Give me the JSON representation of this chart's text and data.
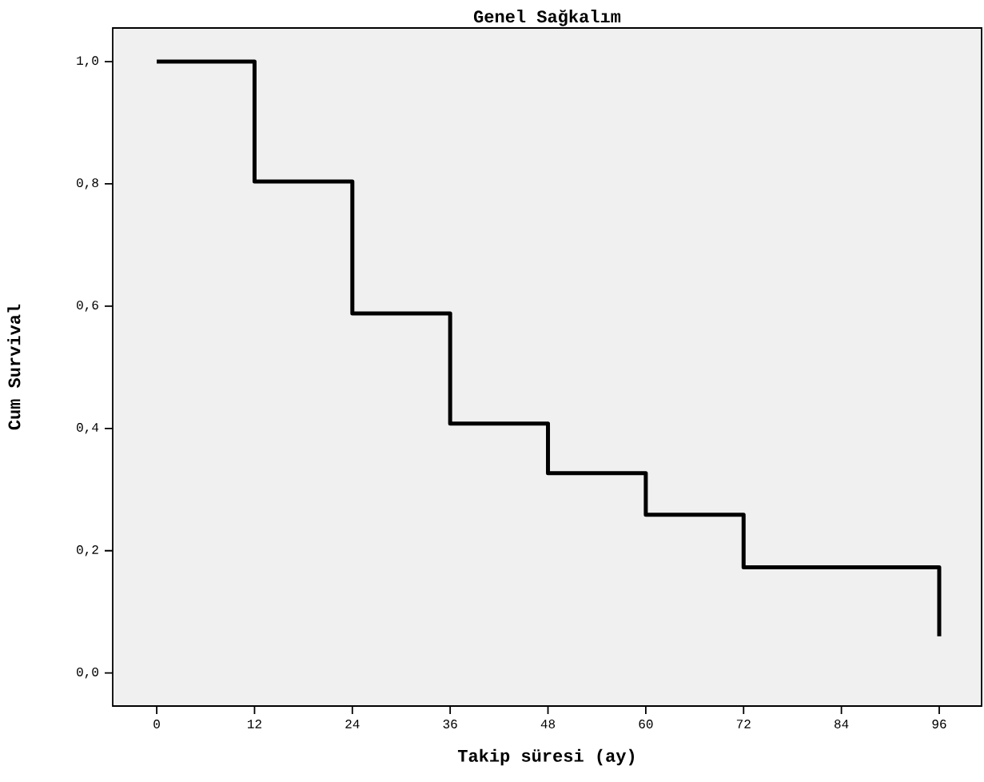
{
  "chart_data": {
    "type": "step",
    "title": "Genel Sağkalım",
    "xlabel": "Takip süresi (ay)",
    "ylabel": "Cum Survival",
    "x": [
      0,
      12,
      24,
      36,
      48,
      60,
      72,
      96
    ],
    "series": [
      {
        "color": "#000000",
        "values": [
          1.0,
          0.804,
          0.588,
          0.408,
          0.327,
          0.259,
          0.173,
          0.06
        ]
      }
    ],
    "xlim": [
      -5.4,
      101.2
    ],
    "ylim": [
      -0.054,
      1.055
    ],
    "xticks": [
      0,
      12,
      24,
      36,
      48,
      60,
      72,
      84,
      96
    ],
    "yticks": [
      {
        "value": 0,
        "label": "0,0"
      },
      {
        "value": 0.2,
        "label": "0,2"
      },
      {
        "value": 0.4,
        "label": "0,4"
      },
      {
        "value": 0.6,
        "label": "0,6"
      },
      {
        "value": 0.8,
        "label": "0,8"
      },
      {
        "value": 1.0,
        "label": "1,0"
      }
    ],
    "grid": false
  }
}
